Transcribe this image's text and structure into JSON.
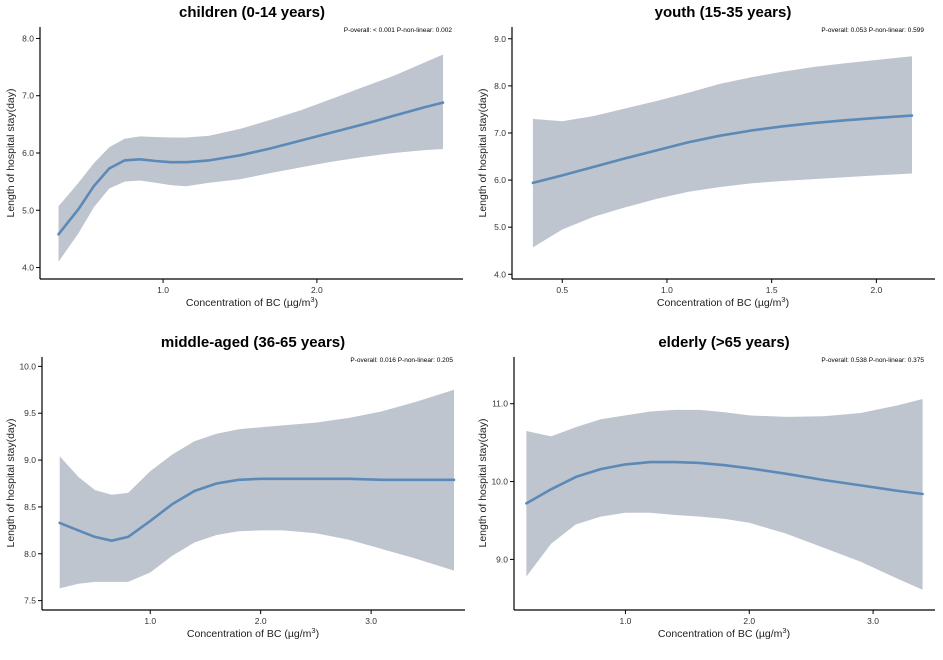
{
  "colors": {
    "line": "#5b89b8",
    "band": "#bfc5cf"
  },
  "chart_data": [
    {
      "type": "line",
      "title": "children (0-14 years)",
      "annotation": "P-overall: < 0.001  P-non-linear: 0.002",
      "xlabel_main": "Concentration of BC (µg/m",
      "xlabel_sup": "3",
      "xlabel_close": ")",
      "ylabel": "Length of hospital stay(day)",
      "xlim": [
        0.2,
        2.95
      ],
      "ylim": [
        3.8,
        8.2
      ],
      "xticks": [
        1.0,
        2.0
      ],
      "xtick_labels": [
        "1.0",
        "2.0"
      ],
      "yticks": [
        4.0,
        5.0,
        6.0,
        7.0,
        8.0
      ],
      "ytick_labels": [
        "4.0",
        "5.0",
        "6.0",
        "7.0",
        "8.0"
      ],
      "grid": false,
      "series": [
        {
          "x": [
            0.32,
            0.45,
            0.55,
            0.65,
            0.75,
            0.85,
            0.95,
            1.05,
            1.15,
            1.3,
            1.5,
            1.7,
            1.9,
            2.1,
            2.3,
            2.5,
            2.7,
            2.82
          ],
          "y": [
            4.58,
            5.02,
            5.42,
            5.73,
            5.87,
            5.89,
            5.86,
            5.84,
            5.84,
            5.87,
            5.96,
            6.08,
            6.22,
            6.36,
            6.5,
            6.65,
            6.8,
            6.88
          ],
          "lower": [
            4.1,
            4.6,
            5.05,
            5.38,
            5.5,
            5.52,
            5.48,
            5.44,
            5.42,
            5.48,
            5.54,
            5.65,
            5.75,
            5.85,
            5.93,
            6.0,
            6.05,
            6.07
          ],
          "upper": [
            5.07,
            5.48,
            5.82,
            6.1,
            6.25,
            6.29,
            6.28,
            6.27,
            6.27,
            6.3,
            6.42,
            6.58,
            6.75,
            6.95,
            7.15,
            7.35,
            7.58,
            7.72
          ]
        }
      ]
    },
    {
      "type": "line",
      "title": "youth (15-35 years)",
      "annotation": "P-overall: 0.053  P-non-linear: 0.599",
      "xlabel_main": "Concentration of BC (µg/m",
      "xlabel_sup": "3",
      "xlabel_close": ")",
      "ylabel": "Length of hospital stay(day)",
      "xlim": [
        0.26,
        2.28
      ],
      "ylim": [
        3.9,
        9.25
      ],
      "xticks": [
        0.5,
        1.0,
        1.5,
        2.0
      ],
      "xtick_labels": [
        "0.5",
        "1.0",
        "1.5",
        "2.0"
      ],
      "yticks": [
        4.0,
        5.0,
        6.0,
        7.0,
        8.0,
        9.0
      ],
      "ytick_labels": [
        "4.0",
        "5.0",
        "6.0",
        "7.0",
        "8.0",
        "9.0"
      ],
      "grid": false,
      "series": [
        {
          "x": [
            0.36,
            0.5,
            0.65,
            0.8,
            0.95,
            1.1,
            1.25,
            1.4,
            1.55,
            1.7,
            1.85,
            2.0,
            2.17
          ],
          "y": [
            5.94,
            6.1,
            6.28,
            6.46,
            6.63,
            6.8,
            6.94,
            7.05,
            7.14,
            7.21,
            7.27,
            7.32,
            7.37
          ],
          "lower": [
            4.57,
            4.95,
            5.22,
            5.42,
            5.6,
            5.75,
            5.85,
            5.93,
            5.98,
            6.02,
            6.06,
            6.1,
            6.14
          ],
          "upper": [
            7.3,
            7.25,
            7.36,
            7.52,
            7.68,
            7.85,
            8.04,
            8.18,
            8.3,
            8.4,
            8.48,
            8.55,
            8.63
          ]
        }
      ]
    },
    {
      "type": "line",
      "title": "middle-aged (36-65 years)",
      "annotation": "P-overall: 0.016  P-non-linear: 0.205",
      "xlabel_main": "Concentration of BC (µg/m",
      "xlabel_sup": "3",
      "xlabel_close": ")",
      "ylabel": "Length of hospital stay(day)",
      "xlim": [
        0.02,
        3.85
      ],
      "ylim": [
        7.4,
        10.1
      ],
      "xticks": [
        1.0,
        2.0,
        3.0
      ],
      "xtick_labels": [
        "1.0",
        "2.0",
        "3.0"
      ],
      "yticks": [
        7.5,
        8.0,
        8.5,
        9.0,
        9.5,
        10.0
      ],
      "ytick_labels": [
        "7.5",
        "8.0",
        "8.5",
        "9.0",
        "9.5",
        "10.0"
      ],
      "grid": false,
      "series": [
        {
          "x": [
            0.18,
            0.35,
            0.5,
            0.65,
            0.8,
            1.0,
            1.2,
            1.4,
            1.6,
            1.8,
            2.0,
            2.2,
            2.5,
            2.8,
            3.1,
            3.4,
            3.75
          ],
          "y": [
            8.33,
            8.25,
            8.18,
            8.14,
            8.18,
            8.35,
            8.53,
            8.67,
            8.75,
            8.79,
            8.8,
            8.8,
            8.8,
            8.8,
            8.79,
            8.79,
            8.79
          ],
          "lower": [
            7.63,
            7.68,
            7.7,
            7.7,
            7.7,
            7.8,
            7.98,
            8.12,
            8.2,
            8.24,
            8.25,
            8.25,
            8.22,
            8.15,
            8.05,
            7.95,
            7.82
          ],
          "upper": [
            9.04,
            8.82,
            8.68,
            8.63,
            8.65,
            8.88,
            9.06,
            9.2,
            9.28,
            9.33,
            9.35,
            9.37,
            9.4,
            9.45,
            9.52,
            9.62,
            9.75
          ]
        }
      ]
    },
    {
      "type": "line",
      "title": "elderly (>65 years)",
      "annotation": "P-overall: 0.538  P-non-linear: 0.375",
      "xlabel_main": "Concentration of BC (µg/m",
      "xlabel_sup": "3",
      "xlabel_close": ")",
      "ylabel": "Length of hospital stay(day)",
      "xlim": [
        0.1,
        3.5
      ],
      "ylim": [
        8.35,
        11.6
      ],
      "xticks": [
        1.0,
        2.0,
        3.0
      ],
      "xtick_labels": [
        "1.0",
        "2.0",
        "3.0"
      ],
      "yticks": [
        9.0,
        10.0,
        11.0
      ],
      "ytick_labels": [
        "9.0",
        "10.0",
        "11.0"
      ],
      "grid": false,
      "series": [
        {
          "x": [
            0.2,
            0.4,
            0.6,
            0.8,
            1.0,
            1.2,
            1.4,
            1.6,
            1.8,
            2.0,
            2.3,
            2.6,
            2.9,
            3.2,
            3.4
          ],
          "y": [
            9.72,
            9.9,
            10.06,
            10.16,
            10.22,
            10.25,
            10.25,
            10.24,
            10.21,
            10.17,
            10.1,
            10.02,
            9.95,
            9.88,
            9.84
          ],
          "lower": [
            8.78,
            9.2,
            9.45,
            9.55,
            9.6,
            9.6,
            9.57,
            9.55,
            9.52,
            9.47,
            9.33,
            9.15,
            8.97,
            8.75,
            8.61
          ],
          "upper": [
            10.65,
            10.58,
            10.7,
            10.8,
            10.85,
            10.9,
            10.92,
            10.92,
            10.89,
            10.85,
            10.83,
            10.84,
            10.88,
            10.98,
            11.06
          ]
        }
      ]
    }
  ]
}
